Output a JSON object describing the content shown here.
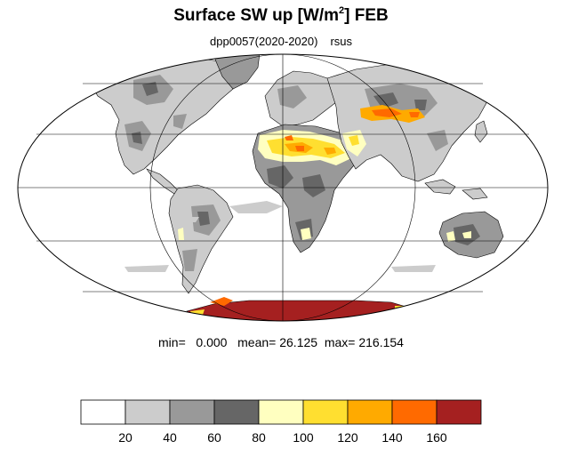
{
  "title": {
    "main": "Surface SW up [W/m",
    "sup": "2",
    "end": "]  FEB"
  },
  "subtitle": {
    "experiment": "dpp0057(2020-2020)",
    "variable": "rsus"
  },
  "stats": {
    "min_label": "min=",
    "min": "0.000",
    "mean_label": "mean=",
    "mean": "26.125",
    "max_label": "max=",
    "max": "216.154"
  },
  "colorbar": {
    "colors": [
      "#ffffff",
      "#cccccc",
      "#999999",
      "#666666",
      "#ffffc0",
      "#ffdf30",
      "#ffaa00",
      "#ff6a00",
      "#a52020"
    ],
    "tick_labels": [
      "20",
      "40",
      "60",
      "80",
      "100",
      "120",
      "140",
      "160"
    ]
  },
  "map": {
    "projection": "mollweide",
    "graticule_lat": [
      -60,
      -30,
      0,
      30,
      60
    ],
    "graticule_lon": [
      -90,
      0,
      90
    ]
  }
}
